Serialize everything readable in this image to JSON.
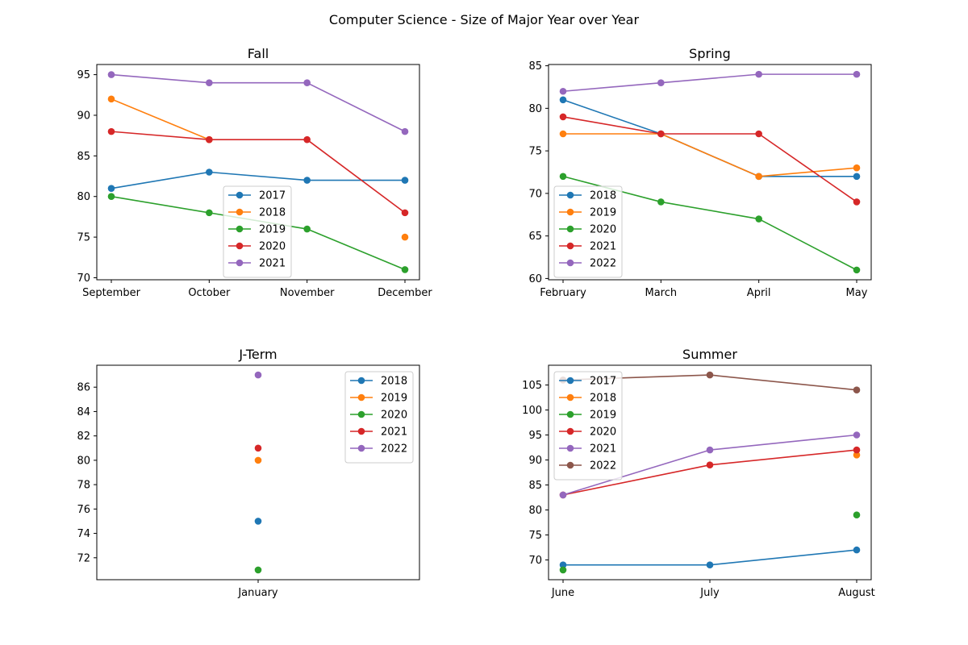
{
  "figure": {
    "title": "Computer Science - Size of Major Year over Year"
  },
  "colors": {
    "2017": "#1f77b4",
    "2018": "#ff7f0e",
    "2019": "#2ca02c",
    "2020": "#d62728",
    "2021": "#9467bd",
    "2022": "#8c564b"
  },
  "chart_data": [
    {
      "type": "line",
      "title": "Fall",
      "categories": [
        "September",
        "October",
        "November",
        "December"
      ],
      "ylim": [
        69.75,
        96.25
      ],
      "yticks": [
        70,
        75,
        80,
        85,
        90,
        95
      ],
      "legend": "lower-center",
      "series": [
        {
          "name": "2017",
          "color": "#1f77b4",
          "values": [
            81,
            83,
            82,
            82
          ]
        },
        {
          "name": "2018",
          "color": "#ff7f0e",
          "values": [
            92,
            87,
            null,
            75
          ]
        },
        {
          "name": "2019",
          "color": "#2ca02c",
          "values": [
            80,
            78,
            76,
            71
          ]
        },
        {
          "name": "2020",
          "color": "#d62728",
          "values": [
            88,
            87,
            87,
            78
          ]
        },
        {
          "name": "2021",
          "color": "#9467bd",
          "values": [
            95,
            94,
            94,
            88
          ]
        }
      ]
    },
    {
      "type": "line",
      "title": "Spring",
      "categories": [
        "February",
        "March",
        "April",
        "May"
      ],
      "ylim": [
        59.85,
        85.15
      ],
      "yticks": [
        60,
        65,
        70,
        75,
        80,
        85
      ],
      "legend": "lower-left",
      "series": [
        {
          "name": "2018",
          "color": "#1f77b4",
          "values": [
            81,
            77,
            72,
            72
          ]
        },
        {
          "name": "2019",
          "color": "#ff7f0e",
          "values": [
            77,
            77,
            72,
            73
          ]
        },
        {
          "name": "2020",
          "color": "#2ca02c",
          "values": [
            72,
            69,
            67,
            61
          ]
        },
        {
          "name": "2021",
          "color": "#d62728",
          "values": [
            79,
            77,
            77,
            69
          ]
        },
        {
          "name": "2022",
          "color": "#9467bd",
          "values": [
            82,
            83,
            84,
            84
          ]
        }
      ]
    },
    {
      "type": "line",
      "title": "J-Term",
      "categories": [
        "January"
      ],
      "ylim": [
        70.2,
        87.8
      ],
      "yticks": [
        72,
        74,
        76,
        78,
        80,
        82,
        84,
        86
      ],
      "legend": "upper-right",
      "series": [
        {
          "name": "2018",
          "color": "#1f77b4",
          "values": [
            75
          ]
        },
        {
          "name": "2019",
          "color": "#ff7f0e",
          "values": [
            80
          ]
        },
        {
          "name": "2020",
          "color": "#2ca02c",
          "values": [
            71
          ]
        },
        {
          "name": "2021",
          "color": "#d62728",
          "values": [
            81
          ]
        },
        {
          "name": "2022",
          "color": "#9467bd",
          "values": [
            87
          ]
        }
      ]
    },
    {
      "type": "line",
      "title": "Summer",
      "categories": [
        "June",
        "July",
        "August"
      ],
      "ylim": [
        66.05,
        108.95
      ],
      "yticks": [
        70,
        75,
        80,
        85,
        90,
        95,
        100,
        105
      ],
      "legend": "upper-left",
      "series": [
        {
          "name": "2017",
          "color": "#1f77b4",
          "values": [
            69,
            69,
            72
          ]
        },
        {
          "name": "2018",
          "color": "#ff7f0e",
          "values": [
            null,
            null,
            91
          ]
        },
        {
          "name": "2019",
          "color": "#2ca02c",
          "values": [
            68,
            null,
            79
          ]
        },
        {
          "name": "2020",
          "color": "#d62728",
          "values": [
            83,
            89,
            92
          ]
        },
        {
          "name": "2021",
          "color": "#9467bd",
          "values": [
            83,
            92,
            95
          ]
        },
        {
          "name": "2022",
          "color": "#8c564b",
          "values": [
            106,
            107,
            104
          ]
        }
      ]
    }
  ]
}
